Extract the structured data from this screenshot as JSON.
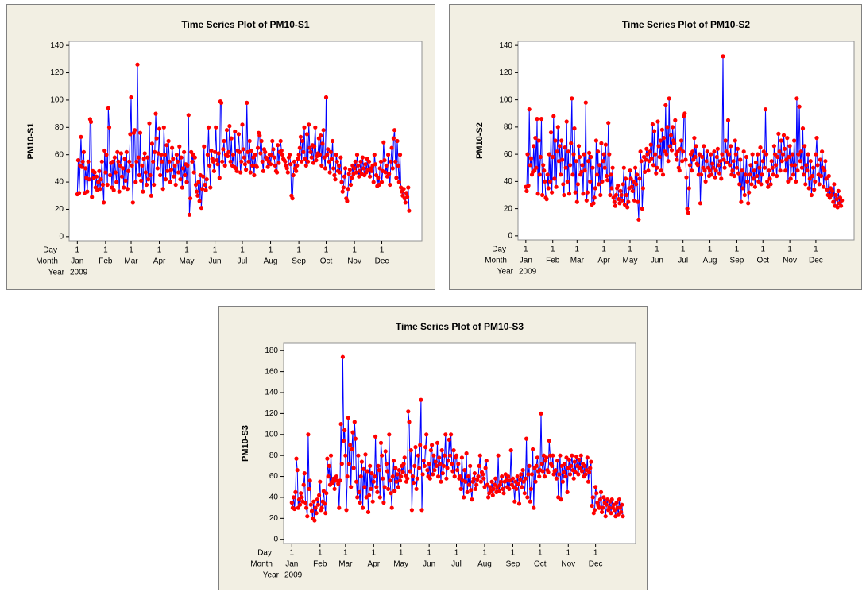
{
  "chart_data": [
    {
      "type": "line",
      "title": "Time Series Plot of PM10-S1",
      "y_label": "PM10-S1",
      "x_row_labels": [
        "Day",
        "Month",
        "Year"
      ],
      "year_label": "2009",
      "xlim": [
        -8,
        379
      ],
      "xticks": [
        {
          "value": 1,
          "label": "1"
        },
        {
          "value": 32,
          "label": "1"
        },
        {
          "value": 60,
          "label": "1"
        },
        {
          "value": 91,
          "label": "1"
        },
        {
          "value": 121,
          "label": "1"
        },
        {
          "value": 152,
          "label": "1"
        },
        {
          "value": 182,
          "label": "1"
        },
        {
          "value": 213,
          "label": "1"
        },
        {
          "value": 244,
          "label": "1"
        },
        {
          "value": 274,
          "label": "1"
        },
        {
          "value": 305,
          "label": "1"
        },
        {
          "value": 335,
          "label": "1"
        }
      ],
      "month_labels": [
        "Jan",
        "Feb",
        "Mar",
        "Apr",
        "May",
        "Jun",
        "Jul",
        "Aug",
        "Sep",
        "Oct",
        "Nov",
        "Dec"
      ],
      "ylim": [
        -3,
        143
      ],
      "yticks": [
        0,
        20,
        40,
        60,
        80,
        100,
        120,
        140
      ],
      "color": "#0000ff",
      "marker_color": "#ff0000",
      "values": [
        31,
        56,
        32,
        52,
        73,
        51,
        55,
        62,
        32,
        50,
        43,
        33,
        55,
        42,
        86,
        84,
        29,
        48,
        43,
        47,
        36,
        44,
        34,
        40,
        48,
        35,
        42,
        55,
        38,
        25,
        63,
        47,
        60,
        38,
        94,
        80,
        45,
        54,
        36,
        55,
        34,
        58,
        47,
        40,
        62,
        55,
        33,
        52,
        61,
        44,
        50,
        36,
        57,
        41,
        62,
        35,
        48,
        55,
        75,
        102,
        52,
        25,
        76,
        78,
        40,
        55,
        126,
        58,
        45,
        76,
        41,
        52,
        33,
        57,
        61,
        47,
        38,
        58,
        42,
        83,
        45,
        30,
        68,
        55,
        38,
        62,
        90,
        72,
        50,
        61,
        79,
        45,
        60,
        55,
        35,
        80,
        60,
        42,
        67,
        48,
        70,
        55,
        40,
        49,
        65,
        57,
        44,
        52,
        38,
        60,
        55,
        47,
        66,
        42,
        58,
        36,
        50,
        62,
        45,
        53,
        40,
        52,
        89,
        16,
        28,
        62,
        55,
        60,
        47,
        58,
        38,
        33,
        30,
        40,
        26,
        45,
        21,
        35,
        44,
        66,
        38,
        34,
        42,
        60,
        80,
        52,
        36,
        63,
        57,
        55,
        48,
        62,
        80,
        56,
        53,
        61,
        43,
        99,
        98,
        55,
        64,
        70,
        52,
        60,
        78,
        59,
        62,
        81,
        55,
        72,
        52,
        60,
        51,
        77,
        50,
        48,
        63,
        75,
        62,
        47,
        55,
        82,
        64,
        58,
        53,
        49,
        98,
        62,
        55,
        70,
        47,
        63,
        52,
        58,
        45,
        60,
        52,
        51,
        65,
        76,
        74,
        61,
        70,
        55,
        48,
        64,
        62,
        58,
        57,
        51,
        55,
        60,
        53,
        60,
        70,
        64,
        58,
        52,
        48,
        47,
        67,
        54,
        62,
        70,
        63,
        60,
        57,
        56,
        55,
        52,
        50,
        47,
        58,
        60,
        53,
        30,
        28,
        45,
        55,
        50,
        48,
        52,
        57,
        60,
        65,
        73,
        55,
        70,
        62,
        80,
        57,
        52,
        75,
        55,
        82,
        65,
        62,
        58,
        67,
        54,
        66,
        80,
        56,
        59,
        61,
        72,
        60,
        74,
        52,
        68,
        78,
        58,
        50,
        102,
        60,
        64,
        55,
        47,
        62,
        57,
        70,
        50,
        45,
        42,
        60,
        55,
        48,
        52,
        47,
        58,
        40,
        33,
        36,
        44,
        50,
        28,
        26,
        35,
        46,
        49,
        38,
        43,
        52,
        46,
        50,
        55,
        47,
        60,
        52,
        44,
        48,
        55,
        46,
        58,
        50,
        45,
        53,
        47,
        57,
        49,
        55,
        44,
        50,
        48,
        52,
        40,
        60,
        53,
        45,
        37,
        43,
        38,
        50,
        55,
        40,
        48,
        69,
        56,
        47,
        52,
        44,
        60,
        46,
        38,
        55,
        65,
        50,
        72,
        78,
        55,
        43,
        70,
        52,
        40,
        60,
        36,
        33,
        30,
        35,
        28,
        25,
        32,
        29,
        36,
        19
      ]
    },
    {
      "type": "line",
      "title": "Time Series Plot of PM10-S2",
      "y_label": "PM10-S2",
      "x_row_labels": [
        "Day",
        "Month",
        "Year"
      ],
      "year_label": "2009",
      "xlim": [
        -8,
        379
      ],
      "xticks": [
        {
          "value": 1,
          "label": "1"
        },
        {
          "value": 32,
          "label": "1"
        },
        {
          "value": 60,
          "label": "1"
        },
        {
          "value": 91,
          "label": "1"
        },
        {
          "value": 121,
          "label": "1"
        },
        {
          "value": 152,
          "label": "1"
        },
        {
          "value": 182,
          "label": "1"
        },
        {
          "value": 213,
          "label": "1"
        },
        {
          "value": 244,
          "label": "1"
        },
        {
          "value": 274,
          "label": "1"
        },
        {
          "value": 305,
          "label": "1"
        },
        {
          "value": 335,
          "label": "1"
        }
      ],
      "month_labels": [
        "Jan",
        "Feb",
        "Mar",
        "Apr",
        "May",
        "Jun",
        "Jul",
        "Aug",
        "Sep",
        "Oct",
        "Nov",
        "Dec"
      ],
      "ylim": [
        -3,
        143
      ],
      "yticks": [
        0,
        20,
        40,
        60,
        80,
        100,
        120,
        140
      ],
      "color": "#0000ff",
      "marker_color": "#ff0000",
      "values": [
        36,
        33,
        60,
        37,
        93,
        52,
        57,
        45,
        47,
        66,
        48,
        72,
        50,
        86,
        31,
        70,
        45,
        58,
        86,
        30,
        52,
        48,
        40,
        28,
        27,
        45,
        35,
        60,
        40,
        76,
        32,
        58,
        88,
        42,
        70,
        36,
        62,
        80,
        55,
        66,
        45,
        70,
        56,
        38,
        30,
        65,
        50,
        84,
        40,
        62,
        31,
        52,
        68,
        101,
        45,
        60,
        79,
        32,
        55,
        25,
        38,
        66,
        58,
        45,
        47,
        52,
        31,
        60,
        48,
        98,
        26,
        32,
        55,
        61,
        40,
        58,
        23,
        50,
        24,
        28,
        35,
        70,
        45,
        62,
        38,
        52,
        30,
        68,
        40,
        55,
        60,
        50,
        67,
        44,
        41,
        83,
        60,
        30,
        45,
        35,
        50,
        28,
        25,
        22,
        30,
        35,
        37,
        27,
        24,
        33,
        30,
        26,
        38,
        50,
        23,
        42,
        30,
        21,
        25,
        35,
        48,
        42,
        36,
        33,
        40,
        26,
        50,
        38,
        45,
        25,
        12,
        42,
        62,
        55,
        20,
        35,
        58,
        47,
        56,
        64,
        60,
        48,
        55,
        62,
        67,
        57,
        82,
        52,
        77,
        60,
        46,
        50,
        84,
        66,
        58,
        70,
        48,
        78,
        45,
        72,
        62,
        96,
        60,
        80,
        55,
        101,
        66,
        74,
        63,
        80,
        70,
        68,
        85,
        60,
        56,
        62,
        50,
        48,
        64,
        70,
        55,
        62,
        88,
        90,
        56,
        43,
        20,
        17,
        35,
        52,
        60,
        48,
        62,
        56,
        72,
        58,
        66,
        53,
        52,
        45,
        60,
        24,
        45,
        58,
        50,
        66,
        48,
        40,
        55,
        62,
        50,
        44,
        48,
        60,
        45,
        53,
        50,
        62,
        43,
        48,
        58,
        64,
        52,
        46,
        55,
        42,
        60,
        132,
        56,
        50,
        70,
        62,
        54,
        85,
        60,
        52,
        66,
        45,
        48,
        55,
        44,
        70,
        60,
        50,
        64,
        46,
        38,
        56,
        25,
        48,
        35,
        62,
        30,
        45,
        58,
        40,
        24,
        32,
        45,
        52,
        38,
        60,
        42,
        48,
        36,
        54,
        44,
        60,
        40,
        50,
        65,
        38,
        45,
        55,
        62,
        50,
        93,
        60,
        40,
        36,
        48,
        42,
        38,
        55,
        50,
        45,
        66,
        60,
        52,
        44,
        58,
        75,
        62,
        48,
        70,
        55,
        60,
        74,
        64,
        48,
        56,
        72,
        40,
        58,
        66,
        42,
        52,
        60,
        45,
        70,
        52,
        40,
        101,
        48,
        60,
        95,
        55,
        62,
        50,
        79,
        45,
        66,
        38,
        52,
        48,
        60,
        35,
        42,
        55,
        30,
        44,
        50,
        34,
        40,
        60,
        72,
        52,
        45,
        38,
        56,
        44,
        62,
        50,
        36,
        48,
        55,
        42,
        34,
        30,
        44,
        28,
        35,
        30,
        33,
        25,
        38,
        22,
        30,
        27,
        21,
        33,
        24,
        28,
        22,
        26
      ]
    },
    {
      "type": "line",
      "title": "Time Series Plot of PM10-S3",
      "y_label": "PM10-S3",
      "x_row_labels": [
        "Day",
        "Month",
        "Year"
      ],
      "year_label": "2009",
      "xlim": [
        -8,
        379
      ],
      "xticks": [
        {
          "value": 1,
          "label": "1"
        },
        {
          "value": 32,
          "label": "1"
        },
        {
          "value": 60,
          "label": "1"
        },
        {
          "value": 91,
          "label": "1"
        },
        {
          "value": 121,
          "label": "1"
        },
        {
          "value": 152,
          "label": "1"
        },
        {
          "value": 182,
          "label": "1"
        },
        {
          "value": 213,
          "label": "1"
        },
        {
          "value": 244,
          "label": "1"
        },
        {
          "value": 274,
          "label": "1"
        },
        {
          "value": 305,
          "label": "1"
        },
        {
          "value": 335,
          "label": "1"
        }
      ],
      "month_labels": [
        "Jan",
        "Feb",
        "Mar",
        "Apr",
        "May",
        "Jun",
        "Jul",
        "Aug",
        "Sep",
        "Oct",
        "Nov",
        "Dec"
      ],
      "ylim": [
        -4,
        187
      ],
      "yticks": [
        0,
        20,
        40,
        60,
        80,
        100,
        120,
        140,
        160,
        180
      ],
      "color": "#0000ff",
      "marker_color": "#ff0000",
      "values": [
        35,
        30,
        40,
        29,
        45,
        77,
        66,
        30,
        38,
        33,
        44,
        40,
        36,
        52,
        63,
        35,
        30,
        22,
        100,
        48,
        56,
        33,
        27,
        20,
        36,
        18,
        30,
        25,
        38,
        33,
        42,
        55,
        28,
        30,
        36,
        46,
        34,
        25,
        44,
        77,
        60,
        70,
        52,
        80,
        55,
        54,
        58,
        48,
        56,
        60,
        56,
        53,
        30,
        56,
        110,
        72,
        174,
        94,
        104,
        80,
        28,
        60,
        116,
        72,
        90,
        50,
        86,
        102,
        68,
        112,
        96,
        55,
        40,
        80,
        45,
        35,
        60,
        74,
        30,
        67,
        50,
        81,
        40,
        65,
        26,
        42,
        70,
        48,
        63,
        36,
        55,
        60,
        98,
        50,
        45,
        70,
        66,
        40,
        92,
        80,
        58,
        35,
        50,
        84,
        72,
        65,
        48,
        100,
        56,
        44,
        30,
        60,
        75,
        46,
        68,
        55,
        62,
        50,
        66,
        56,
        60,
        70,
        64,
        72,
        78,
        61,
        55,
        58,
        122,
        112,
        65,
        85,
        28,
        60,
        54,
        70,
        88,
        48,
        58,
        80,
        68,
        90,
        133,
        28,
        62,
        75,
        70,
        88,
        100,
        66,
        60,
        72,
        58,
        85,
        90,
        62,
        80,
        66,
        74,
        70,
        92,
        60,
        78,
        72,
        55,
        85,
        63,
        70,
        80,
        100,
        58,
        68,
        75,
        95,
        80,
        100,
        72,
        65,
        85,
        60,
        78,
        80,
        66,
        72,
        58,
        60,
        48,
        78,
        56,
        40,
        66,
        55,
        82,
        45,
        60,
        52,
        70,
        47,
        38,
        55,
        58,
        63,
        48,
        52,
        57,
        60,
        70,
        80,
        55,
        64,
        62,
        58,
        50,
        68,
        75,
        52,
        40,
        44,
        50,
        46,
        55,
        42,
        48,
        52,
        58,
        45,
        50,
        80,
        46,
        52,
        55,
        60,
        48,
        44,
        55,
        62,
        57,
        50,
        60,
        48,
        56,
        85,
        52,
        58,
        50,
        36,
        55,
        48,
        60,
        53,
        34,
        57,
        62,
        50,
        66,
        55,
        44,
        58,
        96,
        40,
        62,
        70,
        36,
        48,
        62,
        86,
        30,
        68,
        55,
        70,
        78,
        65,
        60,
        66,
        120,
        72,
        65,
        80,
        60,
        75,
        78,
        66,
        64,
        94,
        80,
        72,
        70,
        80,
        62,
        65,
        66,
        58,
        75,
        40,
        62,
        80,
        38,
        70,
        55,
        64,
        72,
        60,
        78,
        45,
        68,
        76,
        62,
        70,
        80,
        66,
        58,
        74,
        64,
        79,
        70,
        62,
        76,
        68,
        80,
        65,
        72,
        60,
        70,
        62,
        66,
        78,
        55,
        64,
        68,
        74,
        32,
        40,
        25,
        28,
        50,
        44,
        35,
        32,
        30,
        38,
        45,
        26,
        30,
        40,
        35,
        22,
        33,
        38,
        28,
        30,
        36,
        25,
        38,
        30,
        33,
        28,
        22,
        35,
        30,
        24,
        38,
        30,
        26,
        33,
        22
      ]
    }
  ]
}
